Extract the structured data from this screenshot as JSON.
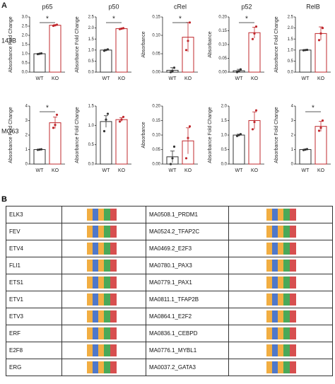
{
  "panel_a": {
    "label": "A",
    "row_labels": [
      "143B",
      "MG63"
    ]
  },
  "chart_data": [
    {
      "type": "bar",
      "title": "p65",
      "ylabel": "Absorbance Fold Change",
      "categories": [
        "WT",
        "KO"
      ],
      "values": [
        1.0,
        2.55
      ],
      "errors": [
        0.02,
        0.03
      ],
      "points": [
        [
          0.98,
          1.0,
          1.02
        ],
        [
          2.52,
          2.55,
          2.58
        ]
      ],
      "colors": [
        "#333333",
        "#c0282d"
      ],
      "ylim": [
        0,
        3
      ],
      "yticks": [
        {
          "value": 0,
          "label": "0.0"
        },
        0.5,
        {
          "value": 1,
          "label": "1.0"
        },
        1.5,
        {
          "value": 2,
          "label": "2.0"
        },
        2.5,
        {
          "value": 3,
          "label": "3.0"
        }
      ],
      "annotation": "*"
    },
    {
      "type": "bar",
      "title": "p50",
      "ylabel": "Absorbance Fold Change",
      "categories": [
        "WT",
        "KO"
      ],
      "values": [
        1.0,
        1.97
      ],
      "errors": [
        0.03,
        0.02
      ],
      "points": [
        [
          0.97,
          1.0,
          1.03
        ],
        [
          1.95,
          1.97,
          1.99
        ]
      ],
      "colors": [
        "#333333",
        "#c0282d"
      ],
      "ylim": [
        0,
        2.5
      ],
      "yticks": [
        {
          "value": 0,
          "label": "0.0"
        },
        0.5,
        {
          "value": 1,
          "label": "1.0"
        },
        1.5,
        {
          "value": 2,
          "label": "2.0"
        },
        2.5
      ],
      "annotation": "*"
    },
    {
      "type": "bar",
      "title": "cRel",
      "ylabel": "Absorbance",
      "categories": [
        "WT",
        "KO"
      ],
      "values": [
        0.005,
        0.095
      ],
      "errors": [
        0.007,
        0.04
      ],
      "points": [
        [
          0.0,
          0.003,
          0.012
        ],
        [
          0.06,
          0.085,
          0.135
        ]
      ],
      "colors": [
        "#333333",
        "#c0282d"
      ],
      "ylim": [
        0,
        0.15
      ],
      "yticks": [
        {
          "value": 0,
          "label": "0.00"
        },
        0.05,
        {
          "value": 0.1,
          "label": "0.10"
        },
        0.15
      ],
      "annotation": "*"
    },
    {
      "type": "bar",
      "title": "p52",
      "ylabel": "Absorbance",
      "categories": [
        "WT",
        "KO"
      ],
      "values": [
        0.005,
        0.143
      ],
      "errors": [
        0.005,
        0.02
      ],
      "points": [
        [
          0.0,
          0.003,
          0.01
        ],
        [
          0.12,
          0.14,
          0.165
        ]
      ],
      "colors": [
        "#333333",
        "#c0282d"
      ],
      "ylim": [
        0,
        0.2
      ],
      "yticks": [
        {
          "value": 0,
          "label": "0.00"
        },
        0.05,
        {
          "value": 0.1,
          "label": "0.10"
        },
        0.15,
        {
          "value": 0.2,
          "label": "0.20"
        }
      ],
      "annotation": "*"
    },
    {
      "type": "bar",
      "title": "RelB",
      "ylabel": "Absorbance Fold Change",
      "categories": [
        "WT",
        "KO"
      ],
      "values": [
        1.0,
        1.75
      ],
      "errors": [
        0.02,
        0.3
      ],
      "points": [
        [
          0.99,
          1.0,
          1.01
        ],
        [
          1.45,
          1.75,
          2.0
        ]
      ],
      "colors": [
        "#333333",
        "#c0282d"
      ],
      "ylim": [
        0,
        2.5
      ],
      "yticks": [
        {
          "value": 0,
          "label": "0.0"
        },
        0.5,
        {
          "value": 1,
          "label": "1.0"
        },
        1.5,
        {
          "value": 2,
          "label": "2.0"
        },
        2.5
      ]
    },
    {
      "type": "bar",
      "ylabel": "Absorbance Fold Change",
      "categories": [
        "WT",
        "KO"
      ],
      "values": [
        1.0,
        2.85
      ],
      "errors": [
        0.03,
        0.4
      ],
      "points": [
        [
          0.98,
          1.0,
          1.02
        ],
        [
          2.5,
          2.7,
          3.4
        ]
      ],
      "colors": [
        "#333333",
        "#c0282d"
      ],
      "ylim": [
        0,
        4
      ],
      "yticks": [
        0,
        1,
        2,
        3,
        4
      ],
      "annotation": "*"
    },
    {
      "type": "bar",
      "ylabel": "Absorbance Fold Change",
      "categories": [
        "WT",
        "KO"
      ],
      "values": [
        1.1,
        1.15
      ],
      "errors": [
        0.15,
        0.05
      ],
      "points": [
        [
          0.85,
          1.15,
          1.3
        ],
        [
          1.1,
          1.15,
          1.22
        ]
      ],
      "colors": [
        "#333333",
        "#c0282d"
      ],
      "ylim": [
        0,
        1.5
      ],
      "yticks": [
        {
          "value": 0,
          "label": "0.0"
        },
        0.5,
        {
          "value": 1,
          "label": "1.0"
        },
        1.5
      ]
    },
    {
      "type": "bar",
      "ylabel": "Absorbance",
      "categories": [
        "WT",
        "KO"
      ],
      "values": [
        0.025,
        0.08
      ],
      "errors": [
        0.02,
        0.045
      ],
      "points": [
        [
          0.0,
          0.02,
          0.06
        ],
        [
          0.02,
          0.09,
          0.13
        ]
      ],
      "colors": [
        "#333333",
        "#c0282d"
      ],
      "ylim": [
        0,
        0.2
      ],
      "yticks": [
        {
          "value": 0,
          "label": "0.00"
        },
        0.05,
        {
          "value": 0.1,
          "label": "0.10"
        },
        0.15,
        {
          "value": 0.2,
          "label": "0.20"
        }
      ]
    },
    {
      "type": "bar",
      "ylabel": "Absorbance Fold Change",
      "categories": [
        "WT",
        "KO"
      ],
      "values": [
        1.0,
        1.5
      ],
      "errors": [
        0.03,
        0.3
      ],
      "points": [
        [
          0.97,
          1.0,
          1.03
        ],
        [
          1.2,
          1.45,
          1.85
        ]
      ],
      "colors": [
        "#333333",
        "#c0282d"
      ],
      "ylim": [
        0,
        2
      ],
      "yticks": [
        {
          "value": 0,
          "label": "0.0"
        },
        0.5,
        {
          "value": 1,
          "label": "1.0"
        },
        1.5,
        {
          "value": 2,
          "label": "2.0"
        }
      ]
    },
    {
      "type": "bar",
      "ylabel": "Absorbance Fold Change",
      "categories": [
        "WT",
        "KO"
      ],
      "values": [
        1.0,
        2.6
      ],
      "errors": [
        0.03,
        0.35
      ],
      "points": [
        [
          0.97,
          1.0,
          1.03
        ],
        [
          2.3,
          2.5,
          3.0
        ]
      ],
      "colors": [
        "#333333",
        "#c0282d"
      ],
      "ylim": [
        0,
        4
      ],
      "yticks": [
        0,
        1,
        2,
        3,
        4
      ],
      "annotation": "*"
    }
  ],
  "table": {
    "label": "B",
    "rows": [
      [
        "ELK3",
        "MA0508.1_PRDM1"
      ],
      [
        "FEV",
        "MA0524.2_TFAP2C"
      ],
      [
        "ETV4",
        "MA0469.2_E2F3"
      ],
      [
        "FLI1",
        "MA0780.1_PAX3"
      ],
      [
        "ETS1",
        "MA0779.1_PAX1"
      ],
      [
        "ETV1",
        "MA0811.1_TFAP2B"
      ],
      [
        "ETV3",
        "MA0864.1_E2F2"
      ],
      [
        "ERF",
        "MA0836.1_CEBPD"
      ],
      [
        "E2F8",
        "MA0776.1_MYBL1"
      ],
      [
        "ERG",
        "MA0037.2_GATA3"
      ]
    ]
  }
}
